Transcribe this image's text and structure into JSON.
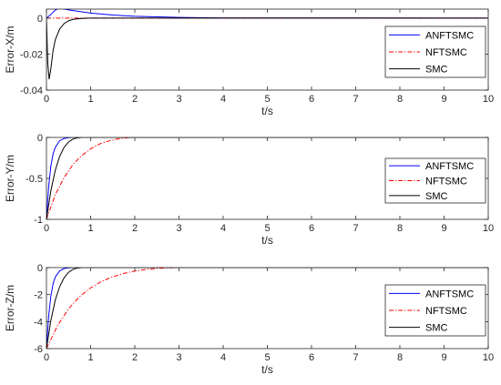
{
  "chart_data": [
    {
      "type": "line",
      "xlabel": "t/s",
      "ylabel": "Error-X/m",
      "xlim": [
        0,
        10
      ],
      "ylim": [
        -0.04,
        0.005
      ],
      "xticks": [
        0,
        1,
        2,
        3,
        4,
        5,
        6,
        7,
        8,
        9,
        10
      ],
      "yticks": [
        0,
        -0.02,
        -0.04
      ],
      "ytick_labels": [
        "0",
        "-0.02",
        "-0.04"
      ],
      "legend": "right",
      "series": [
        {
          "name": "ANFTSMC",
          "color": "#0000ff",
          "style": "solid",
          "x": [
            0,
            0.1,
            0.2,
            0.3,
            0.4,
            0.6,
            0.8,
            1.0,
            1.5,
            2.0,
            3.0,
            4.0,
            10
          ],
          "y": [
            0,
            0.002,
            0.0045,
            0.0055,
            0.005,
            0.0042,
            0.0035,
            0.0028,
            0.0017,
            0.001,
            0.0004,
            0.0001,
            0
          ]
        },
        {
          "name": "NFTSMC",
          "color": "#ff0000",
          "style": "dashdot",
          "x": [
            0,
            10
          ],
          "y": [
            0,
            0
          ]
        },
        {
          "name": "SMC",
          "color": "#000000",
          "style": "solid",
          "x": [
            0,
            0.03,
            0.06,
            0.1,
            0.15,
            0.2,
            0.3,
            0.4,
            0.5,
            0.6,
            0.8,
            1.0,
            10
          ],
          "y": [
            0,
            -0.025,
            -0.034,
            -0.028,
            -0.018,
            -0.012,
            -0.006,
            -0.003,
            -0.0015,
            -0.0007,
            -0.0002,
            0,
            0
          ]
        }
      ]
    },
    {
      "type": "line",
      "xlabel": "t/s",
      "ylabel": "Error-Y/m",
      "xlim": [
        0,
        10
      ],
      "ylim": [
        -1,
        0
      ],
      "xticks": [
        0,
        1,
        2,
        3,
        4,
        5,
        6,
        7,
        8,
        9,
        10
      ],
      "yticks": [
        0,
        -0.5,
        -1
      ],
      "ytick_labels": [
        "0",
        "-0.5",
        "-1"
      ],
      "legend": "right",
      "series": [
        {
          "name": "ANFTSMC",
          "color": "#0000ff",
          "style": "solid",
          "x": [
            0,
            0.05,
            0.1,
            0.15,
            0.2,
            0.3,
            0.4,
            0.5,
            0.6,
            10
          ],
          "y": [
            -1,
            -0.6,
            -0.35,
            -0.2,
            -0.12,
            -0.04,
            -0.012,
            -0.003,
            0,
            0
          ]
        },
        {
          "name": "NFTSMC",
          "color": "#ff0000",
          "style": "dashdot",
          "x": [
            0,
            0.2,
            0.4,
            0.6,
            0.8,
            1.0,
            1.2,
            1.4,
            1.6,
            1.8,
            2.0,
            10
          ],
          "y": [
            -1,
            -0.7,
            -0.49,
            -0.33,
            -0.22,
            -0.14,
            -0.08,
            -0.045,
            -0.02,
            -0.005,
            0,
            0
          ]
        },
        {
          "name": "SMC",
          "color": "#000000",
          "style": "solid",
          "x": [
            0,
            0.1,
            0.2,
            0.3,
            0.4,
            0.5,
            0.6,
            0.7,
            0.8,
            10
          ],
          "y": [
            -1,
            -0.65,
            -0.4,
            -0.23,
            -0.12,
            -0.055,
            -0.02,
            -0.005,
            0,
            0
          ]
        }
      ]
    },
    {
      "type": "line",
      "xlabel": "t/s",
      "ylabel": "Error-Z/m",
      "xlim": [
        0,
        10
      ],
      "ylim": [
        -6,
        0
      ],
      "xticks": [
        0,
        1,
        2,
        3,
        4,
        5,
        6,
        7,
        8,
        9,
        10
      ],
      "yticks": [
        0,
        -2,
        -4,
        -6
      ],
      "ytick_labels": [
        "0",
        "-2",
        "-4",
        "-6"
      ],
      "legend": "right",
      "series": [
        {
          "name": "ANFTSMC",
          "color": "#0000ff",
          "style": "solid",
          "x": [
            0,
            0.05,
            0.1,
            0.15,
            0.2,
            0.3,
            0.4,
            0.5,
            0.6,
            10
          ],
          "y": [
            -6,
            -3.6,
            -2.1,
            -1.2,
            -0.7,
            -0.24,
            -0.07,
            -0.015,
            0,
            0
          ]
        },
        {
          "name": "NFTSMC",
          "color": "#ff0000",
          "style": "dashdot",
          "x": [
            0,
            0.25,
            0.5,
            0.75,
            1.0,
            1.25,
            1.5,
            1.75,
            2.0,
            2.25,
            2.5,
            2.75,
            3.0,
            10
          ],
          "y": [
            -6,
            -4.3,
            -3.05,
            -2.15,
            -1.5,
            -1.02,
            -0.68,
            -0.43,
            -0.26,
            -0.14,
            -0.06,
            -0.02,
            0,
            0
          ]
        },
        {
          "name": "SMC",
          "color": "#000000",
          "style": "solid",
          "x": [
            0,
            0.1,
            0.2,
            0.3,
            0.4,
            0.5,
            0.6,
            0.7,
            0.8,
            10
          ],
          "y": [
            -6,
            -3.9,
            -2.4,
            -1.4,
            -0.75,
            -0.35,
            -0.13,
            -0.03,
            0,
            0
          ]
        }
      ]
    }
  ]
}
